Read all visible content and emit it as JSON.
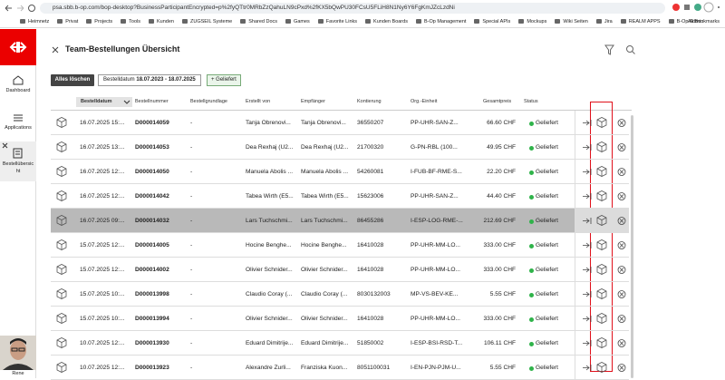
{
  "browser": {
    "url": "psa.sbb.b-op.com/bop-desktop?BusinessParticipantEncrypted=p%2fyQTtr0MRbZzQahuLN9cPxd%2fKX5bQwPU30FCsU5FLiH8N1Ny6Y6FgKmJZcLzdNi",
    "bookmarks": [
      "Heimnetz",
      "Privat",
      "Projects",
      "Tools",
      "Kunden",
      "ZUGSEIL Systeme",
      "Shared Docs",
      "Games",
      "Favorite Links",
      "Kunden Boards",
      "B-Op Management",
      "Special APIs",
      "Mockups",
      "Wiki Seiten",
      "Jira",
      "REALM APPS",
      "B-Op Admin"
    ],
    "all_bookmarks": "All Bookmarks"
  },
  "sidebar": {
    "items": [
      "Dashboard",
      "Applications",
      "Bestellübersicht"
    ],
    "user": "Rene"
  },
  "header": {
    "title": "Team-Bestellungen Übersicht"
  },
  "filters": {
    "clear": "Alles löschen",
    "date_label": "Bestelldatum",
    "date_range": "18.07.2023 - 18.07.2025",
    "status": "+ Geliefert"
  },
  "table": {
    "columns": [
      "Bestelldatum",
      "Bestellnummer",
      "Bestellgrundlage",
      "Erstellt von",
      "Empfänger",
      "Kontierung",
      "Org.-Einheit",
      "Gesamtpreis",
      "Status"
    ],
    "rows": [
      [
        "16.07.2025 15:...",
        "D000014059",
        "-",
        "Tanja Obrenovi...",
        "Tanja Obrenovi...",
        "36550207",
        "PP-UHR-SAN-Z...",
        "66.60 CHF",
        "Geliefert"
      ],
      [
        "16.07.2025 13:...",
        "D000014053",
        "-",
        "Dea Rexhaj (U2...",
        "Dea Rexhaj (U2...",
        "21700320",
        "G-PN-RBL (100...",
        "49.95 CHF",
        "Geliefert"
      ],
      [
        "16.07.2025 12:...",
        "D000014050",
        "-",
        "Manuela Abolis ...",
        "Manuela Abolis ...",
        "54260081",
        "I-FUB-BF-RME-S...",
        "22.20 CHF",
        "Geliefert"
      ],
      [
        "16.07.2025 12:...",
        "D000014042",
        "-",
        "Tabea Wirth (E5...",
        "Tabea Wirth (E5...",
        "15623006",
        "PP-UHR-SAN-Z...",
        "44.40 CHF",
        "Geliefert"
      ],
      [
        "16.07.2025 09:...",
        "D000014032",
        "-",
        "Lars Tuchschmi...",
        "Lars Tuchschmi...",
        "86455286",
        "I-ESP-LOG-RME-...",
        "212.69 CHF",
        "Geliefert"
      ],
      [
        "15.07.2025 12:...",
        "D000014005",
        "-",
        "Hocine Benghe...",
        "Hocine Benghe...",
        "16410028",
        "PP-UHR-MM-LO...",
        "333.00 CHF",
        "Geliefert"
      ],
      [
        "15.07.2025 12:...",
        "D000014002",
        "-",
        "Olivier Schnider...",
        "Olivier Schnider...",
        "16410028",
        "PP-UHR-MM-LO...",
        "333.00 CHF",
        "Geliefert"
      ],
      [
        "15.07.2025 10:...",
        "D000013998",
        "-",
        "Claudio Coray (...",
        "Claudio Coray (...",
        "8030132003",
        "MP-VS-BEV-KE...",
        "5.55 CHF",
        "Geliefert"
      ],
      [
        "15.07.2025 10:...",
        "D000013994",
        "-",
        "Olivier Schnider...",
        "Olivier Schnider...",
        "16410028",
        "PP-UHR-MM-LO...",
        "333.00 CHF",
        "Geliefert"
      ],
      [
        "10.07.2025 12:...",
        "D000013930",
        "-",
        "Eduard Dimitrije...",
        "Eduard Dimitrije...",
        "51850002",
        "I-ESP-BSI-RSD-T...",
        "106.11 CHF",
        "Geliefert"
      ],
      [
        "10.07.2025 12:...",
        "D000013923",
        "-",
        "Alexandre Zurli...",
        "Franziska Kuon...",
        "8051100031",
        "I-EN-PJN-PJM-U...",
        "5.55 CHF",
        "Geliefert"
      ]
    ]
  }
}
